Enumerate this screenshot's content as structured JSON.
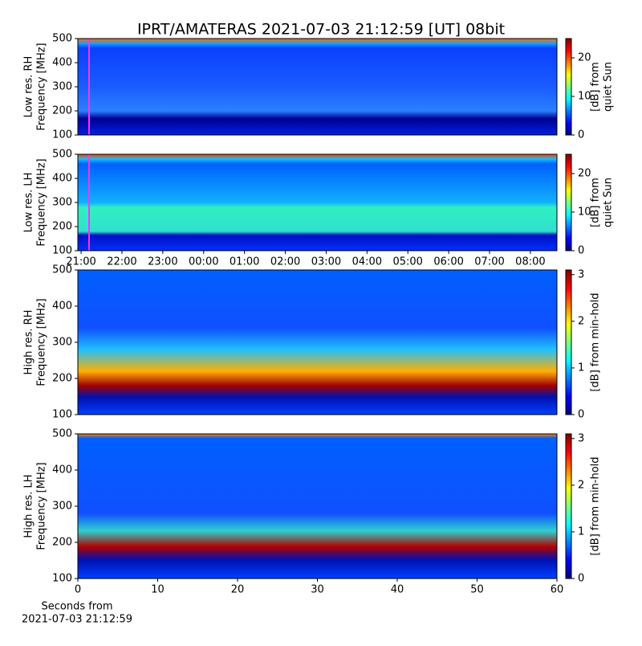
{
  "title": "IPRT/AMATERAS 2021-07-03 21:12:59 [UT]   08bit",
  "chart_data": [
    {
      "type": "heatmap",
      "ylabel": [
        "Low res. RH",
        "Frequency [MHz]"
      ],
      "ylim": [
        100,
        500
      ],
      "yticks": [
        100,
        200,
        300,
        400,
        500
      ],
      "xlim": [
        20.92,
        32.65
      ],
      "xticks": [],
      "colormap": "jet",
      "colorbar": {
        "label": [
          "[dB] from",
          "quiet Sun"
        ],
        "lim": [
          0,
          25
        ],
        "ticks": [
          0,
          10,
          20
        ]
      }
    },
    {
      "type": "heatmap",
      "ylabel": [
        "Low res. LH",
        "Frequency [MHz]"
      ],
      "ylim": [
        100,
        500
      ],
      "yticks": [
        100,
        200,
        300,
        400,
        500
      ],
      "xlim": [
        20.92,
        32.65
      ],
      "xticks": [
        {
          "value": 21,
          "label": "21:00"
        },
        {
          "value": 22,
          "label": "22:00"
        },
        {
          "value": 23,
          "label": "23:00"
        },
        {
          "value": 24,
          "label": "00:00"
        },
        {
          "value": 25,
          "label": "01:00"
        },
        {
          "value": 26,
          "label": "02:00"
        },
        {
          "value": 27,
          "label": "03:00"
        },
        {
          "value": 28,
          "label": "04:00"
        },
        {
          "value": 29,
          "label": "05:00"
        },
        {
          "value": 30,
          "label": "06:00"
        },
        {
          "value": 31,
          "label": "07:00"
        },
        {
          "value": 32,
          "label": "08:00"
        }
      ],
      "colormap": "jet",
      "colorbar": {
        "label": [
          "[dB] from",
          "quiet Sun"
        ],
        "lim": [
          0,
          25
        ],
        "ticks": [
          0,
          10,
          20
        ]
      }
    },
    {
      "type": "heatmap",
      "ylabel": [
        "High res. RH",
        "Frequency [MHz]"
      ],
      "ylim": [
        100,
        500
      ],
      "yticks": [
        100,
        200,
        300,
        400,
        500
      ],
      "xlim": [
        0,
        60
      ],
      "xticks": [],
      "colormap": "jet",
      "colorbar": {
        "label": [
          "[dB] from min-hold"
        ],
        "lim": [
          0,
          3.1
        ],
        "ticks": [
          0,
          1,
          2,
          3
        ]
      }
    },
    {
      "type": "heatmap",
      "ylabel": [
        "High res. LH",
        "Frequency [MHz]"
      ],
      "ylim": [
        100,
        500
      ],
      "yticks": [
        100,
        200,
        300,
        400,
        500
      ],
      "xlim": [
        0,
        60
      ],
      "xticks": [
        0,
        10,
        20,
        30,
        40,
        50,
        60
      ],
      "xlabel": [
        "Seconds from",
        "2021-07-03 21:12:59"
      ],
      "colormap": "jet",
      "colorbar": {
        "label": [
          "[dB] from min-hold"
        ],
        "lim": [
          0,
          3.1
        ],
        "ticks": [
          0,
          1,
          2,
          3
        ]
      }
    }
  ]
}
